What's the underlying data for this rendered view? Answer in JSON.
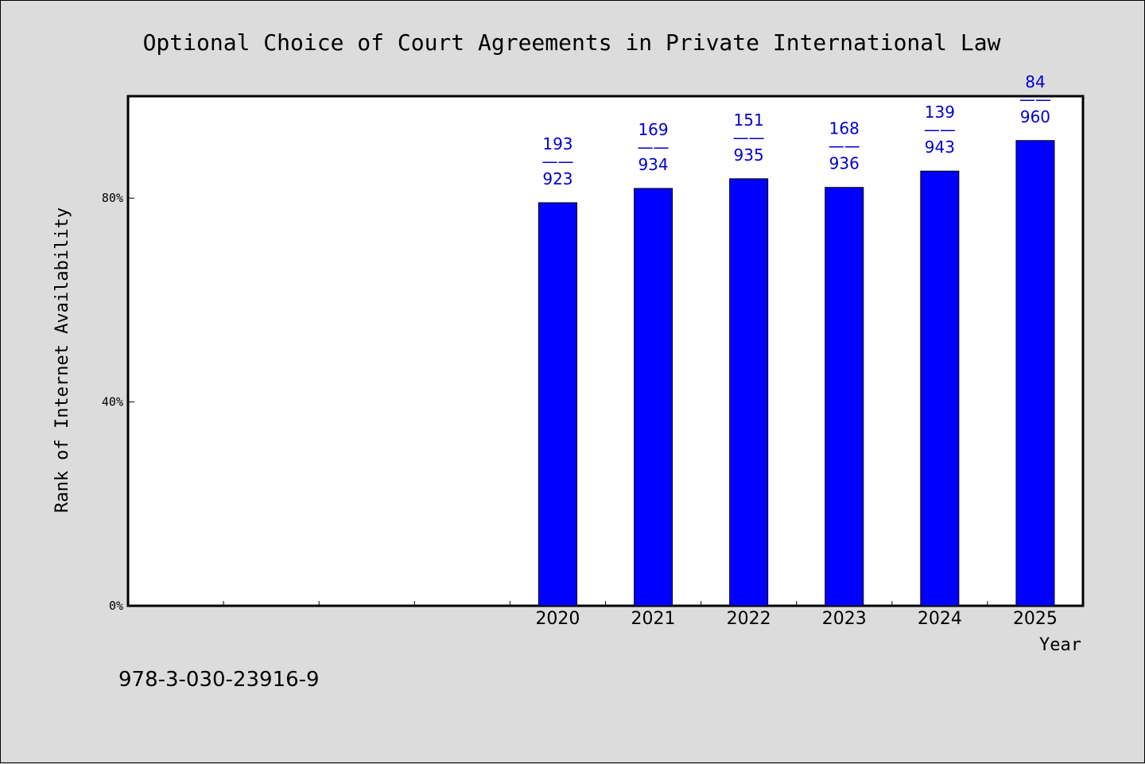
{
  "chart_data": {
    "type": "bar",
    "title": "Optional Choice of Court Agreements in Private International Law",
    "xlabel": "Year",
    "ylabel": "Rank of Internet Availability",
    "categories": [
      "2020",
      "2021",
      "2022",
      "2023",
      "2024",
      "2025"
    ],
    "values": [
      79.1,
      81.9,
      83.8,
      82.1,
      85.3,
      91.3
    ],
    "data_labels": [
      {
        "top": "193",
        "sep": "——",
        "bottom": "923"
      },
      {
        "top": "169",
        "sep": "——",
        "bottom": "934"
      },
      {
        "top": "151",
        "sep": "——",
        "bottom": "935"
      },
      {
        "top": "168",
        "sep": "——",
        "bottom": "936"
      },
      {
        "top": "139",
        "sep": "——",
        "bottom": "943"
      },
      {
        "top": "84",
        "sep": "——",
        "bottom": "960"
      }
    ],
    "yticks": [
      {
        "value": 0,
        "label": "0%"
      },
      {
        "value": 40,
        "label": "40%"
      },
      {
        "value": 80,
        "label": "80%"
      }
    ],
    "ylim": [
      0,
      100
    ],
    "empty_slots_before": 4,
    "grid": false,
    "bar_color": "#0000ff",
    "label_color": "#0000cc",
    "plot_background": "#ffffff",
    "figure_background": "#dcdcdc"
  },
  "footer": {
    "isbn": "978-3-030-23916-9"
  }
}
